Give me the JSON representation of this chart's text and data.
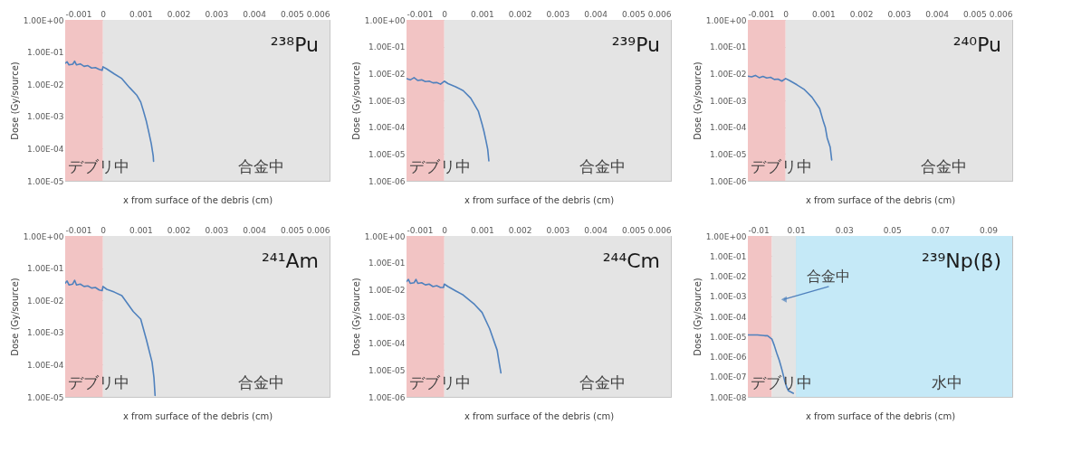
{
  "chart_data": [
    {
      "type": "line",
      "title": "²³⁸Pu",
      "xlabel": "x from surface of the debris (cm)",
      "ylabel": "Dose (Gy/source)",
      "log": "y",
      "grid": true,
      "x": [
        -0.001,
        -0.00095,
        -0.0009,
        -0.0008,
        -0.00075,
        -0.0007,
        -0.0006,
        -0.0005,
        -0.0004,
        -0.0003,
        -0.0002,
        -0.0001,
        -2e-05,
        0,
        0.0001,
        0.0003,
        0.0005,
        0.0007,
        0.0009,
        0.001,
        0.00107,
        0.00115,
        0.00122,
        0.00128,
        0.00133,
        0.00134
      ],
      "series": [
        {
          "color": "#4f81bd",
          "values": [
            0.045,
            0.05,
            0.04,
            0.042,
            0.052,
            0.04,
            0.043,
            0.036,
            0.038,
            0.032,
            0.033,
            0.029,
            0.027,
            0.035,
            0.03,
            0.021,
            0.015,
            0.008,
            0.0045,
            0.0028,
            0.0015,
            0.0007,
            0.0003,
            0.00014,
            6e-05,
            4e-05
          ]
        }
      ],
      "xlim": [
        -0.001,
        0.006
      ],
      "xticks": [
        -0.001,
        0,
        0.001,
        0.002,
        0.003,
        0.004,
        0.005,
        0.006
      ],
      "ylim": [
        1e-05,
        1
      ],
      "yticks": [
        {
          "value": 1,
          "label": "1.00E+00"
        },
        {
          "value": 0.1,
          "label": "1.00E-01"
        },
        {
          "value": 0.01,
          "label": "1.00E-02"
        },
        {
          "value": 0.001,
          "label": "1.00E-03"
        },
        {
          "value": 0.0001,
          "label": "1.00E-04"
        },
        {
          "value": 1e-05,
          "label": "1.00E-05"
        }
      ],
      "bands": [
        {
          "axis": "x",
          "from": -0.001,
          "to": 0,
          "label": "デブリ中",
          "color": "#f2c4c4"
        },
        {
          "axis": "x",
          "from": 0,
          "to": 0.006,
          "label": "合金中",
          "color": "#e4e4e4"
        }
      ]
    },
    {
      "type": "line",
      "title": "²³⁹Pu",
      "xlabel": "x from surface of the debris (cm)",
      "ylabel": "Dose (Gy/source)",
      "log": "y",
      "grid": true,
      "x": [
        -0.001,
        -0.0009,
        -0.0008,
        -0.0007,
        -0.0006,
        -0.0005,
        -0.0004,
        -0.0003,
        -0.0002,
        -0.0001,
        0,
        0.0001,
        0.0003,
        0.0005,
        0.0007,
        0.0009,
        0.001,
        0.00105,
        0.0011,
        0.00115,
        0.00118
      ],
      "series": [
        {
          "color": "#4f81bd",
          "values": [
            0.0065,
            0.0058,
            0.007,
            0.0055,
            0.0058,
            0.005,
            0.0052,
            0.0045,
            0.0046,
            0.004,
            0.0052,
            0.0042,
            0.0032,
            0.0023,
            0.0012,
            0.0004,
            0.00013,
            7e-05,
            3.3e-05,
            1.5e-05,
            5.5e-06
          ]
        }
      ],
      "xlim": [
        -0.001,
        0.006
      ],
      "xticks": [
        -0.001,
        0,
        0.001,
        0.002,
        0.003,
        0.004,
        0.005,
        0.006
      ],
      "ylim": [
        1e-06,
        1
      ],
      "yticks": [
        {
          "value": 1,
          "label": "1.00E+00"
        },
        {
          "value": 0.1,
          "label": "1.00E-01"
        },
        {
          "value": 0.01,
          "label": "1.00E-02"
        },
        {
          "value": 0.001,
          "label": "1.00E-03"
        },
        {
          "value": 0.0001,
          "label": "1.00E-04"
        },
        {
          "value": 1e-05,
          "label": "1.00E-05"
        },
        {
          "value": 1e-06,
          "label": "1.00E-06"
        }
      ],
      "bands": [
        {
          "axis": "x",
          "from": -0.001,
          "to": 0,
          "label": "デブリ中",
          "color": "#f2c4c4"
        },
        {
          "axis": "x",
          "from": 0,
          "to": 0.006,
          "label": "合金中",
          "color": "#e4e4e4"
        }
      ]
    },
    {
      "type": "line",
      "title": "²⁴⁰Pu",
      "xlabel": "x from surface of the debris (cm)",
      "ylabel": "Dose (Gy/source)",
      "log": "y",
      "grid": true,
      "x": [
        -0.001,
        -0.0009,
        -0.0008,
        -0.0007,
        -0.0006,
        -0.0005,
        -0.0004,
        -0.0003,
        -0.0002,
        -0.0001,
        0,
        0.0001,
        0.0003,
        0.0005,
        0.0007,
        0.0009,
        0.001,
        0.00105,
        0.0011,
        0.00118,
        0.00122
      ],
      "series": [
        {
          "color": "#4f81bd",
          "values": [
            0.008,
            0.0075,
            0.0085,
            0.007,
            0.0078,
            0.0068,
            0.0072,
            0.006,
            0.0062,
            0.0052,
            0.0065,
            0.0055,
            0.0038,
            0.0025,
            0.0013,
            0.0005,
            0.00016,
            0.0001,
            4e-05,
            1.8e-05,
            6e-06
          ]
        }
      ],
      "xlim": [
        -0.001,
        0.006
      ],
      "xticks": [
        -0.001,
        0,
        0.001,
        0.002,
        0.003,
        0.004,
        0.005,
        0.006
      ],
      "ylim": [
        1e-06,
        1
      ],
      "yticks": [
        {
          "value": 1,
          "label": "1.00E+00"
        },
        {
          "value": 0.1,
          "label": "1.00E-01"
        },
        {
          "value": 0.01,
          "label": "1.00E-02"
        },
        {
          "value": 0.001,
          "label": "1.00E-03"
        },
        {
          "value": 0.0001,
          "label": "1.00E-04"
        },
        {
          "value": 1e-05,
          "label": "1.00E-05"
        },
        {
          "value": 1e-06,
          "label": "1.00E-06"
        }
      ],
      "bands": [
        {
          "axis": "x",
          "from": -0.001,
          "to": 0,
          "label": "デブリ中",
          "color": "#f2c4c4"
        },
        {
          "axis": "x",
          "from": 0,
          "to": 0.006,
          "label": "合金中",
          "color": "#e4e4e4"
        }
      ]
    },
    {
      "type": "line",
      "title": "²⁴¹Am",
      "xlabel": "x from surface of the debris (cm)",
      "ylabel": "Dose (Gy/source)",
      "log": "y",
      "grid": true,
      "x": [
        -0.001,
        -0.00095,
        -0.0009,
        -0.0008,
        -0.00075,
        -0.0007,
        -0.0006,
        -0.0005,
        -0.0004,
        -0.0003,
        -0.0002,
        -0.0001,
        -2e-05,
        0,
        0.0001,
        0.0003,
        0.0005,
        0.0008,
        0.001,
        0.00115,
        0.0013,
        0.00135,
        0.00138
      ],
      "series": [
        {
          "color": "#4f81bd",
          "values": [
            0.034,
            0.04,
            0.03,
            0.032,
            0.042,
            0.03,
            0.032,
            0.027,
            0.028,
            0.024,
            0.025,
            0.021,
            0.02,
            0.027,
            0.022,
            0.018,
            0.014,
            0.0045,
            0.0026,
            0.0006,
            0.00012,
            4e-05,
            1.1e-05
          ]
        }
      ],
      "xlim": [
        -0.001,
        0.006
      ],
      "xticks": [
        -0.001,
        0,
        0.001,
        0.002,
        0.003,
        0.004,
        0.005,
        0.006
      ],
      "ylim": [
        1e-05,
        1
      ],
      "yticks": [
        {
          "value": 1,
          "label": "1.00E+00"
        },
        {
          "value": 0.1,
          "label": "1.00E-01"
        },
        {
          "value": 0.01,
          "label": "1.00E-02"
        },
        {
          "value": 0.001,
          "label": "1.00E-03"
        },
        {
          "value": 0.0001,
          "label": "1.00E-04"
        },
        {
          "value": 1e-05,
          "label": "1.00E-05"
        }
      ],
      "bands": [
        {
          "axis": "x",
          "from": -0.001,
          "to": 0,
          "label": "デブリ中",
          "color": "#f2c4c4"
        },
        {
          "axis": "x",
          "from": 0,
          "to": 0.006,
          "label": "合金中",
          "color": "#e4e4e4"
        }
      ]
    },
    {
      "type": "line",
      "title": "²⁴⁴Cm",
      "xlabel": "x from surface of the debris (cm)",
      "ylabel": "Dose (Gy/source)",
      "log": "y",
      "grid": true,
      "x": [
        -0.001,
        -0.00095,
        -0.0009,
        -0.0008,
        -0.00075,
        -0.0007,
        -0.0006,
        -0.0005,
        -0.0004,
        -0.0003,
        -0.0002,
        -0.0001,
        -2e-05,
        0,
        0.0001,
        0.0003,
        0.0005,
        0.0008,
        0.001,
        0.0012,
        0.0014,
        0.00145,
        0.0015
      ],
      "series": [
        {
          "color": "#4f81bd",
          "values": [
            0.02,
            0.024,
            0.017,
            0.018,
            0.024,
            0.017,
            0.018,
            0.015,
            0.016,
            0.013,
            0.014,
            0.012,
            0.012,
            0.016,
            0.013,
            0.009,
            0.0063,
            0.0028,
            0.0014,
            0.00035,
            5.5e-05,
            2e-05,
            7.8e-06
          ]
        }
      ],
      "xlim": [
        -0.001,
        0.006
      ],
      "xticks": [
        -0.001,
        0,
        0.001,
        0.002,
        0.003,
        0.004,
        0.005,
        0.006
      ],
      "ylim": [
        1e-06,
        1
      ],
      "yticks": [
        {
          "value": 1,
          "label": "1.00E+00"
        },
        {
          "value": 0.1,
          "label": "1.00E-01"
        },
        {
          "value": 0.01,
          "label": "1.00E-02"
        },
        {
          "value": 0.001,
          "label": "1.00E-03"
        },
        {
          "value": 0.0001,
          "label": "1.00E-04"
        },
        {
          "value": 1e-05,
          "label": "1.00E-05"
        },
        {
          "value": 1e-06,
          "label": "1.00E-06"
        }
      ],
      "bands": [
        {
          "axis": "x",
          "from": -0.001,
          "to": 0,
          "label": "デブリ中",
          "color": "#f2c4c4"
        },
        {
          "axis": "x",
          "from": 0,
          "to": 0.006,
          "label": "合金中",
          "color": "#e4e4e4"
        }
      ]
    },
    {
      "type": "line",
      "title": "²³⁹Np(β)",
      "xlabel": "x from surface of the debris (cm)",
      "ylabel": "Dose (Gy/source)",
      "log": "y",
      "grid": true,
      "x": [
        -0.01,
        -0.006,
        -0.003,
        -0.0018,
        0,
        0.001,
        0.002,
        0.0031,
        0.0042,
        0.0053,
        0.0062,
        0.0069,
        0.0089
      ],
      "series": [
        {
          "color": "#4f81bd",
          "values": [
            1.2e-05,
            1.2e-05,
            1.1e-05,
            1.1e-05,
            7.5e-06,
            3.6e-06,
            1.5e-06,
            6.5e-07,
            2.2e-07,
            6.5e-08,
            3e-08,
            2e-08,
            1.5e-08
          ]
        }
      ],
      "xlim": [
        -0.01,
        0.1
      ],
      "xticks": [
        -0.01,
        0.01,
        0.03,
        0.05,
        0.07,
        0.09
      ],
      "ylim": [
        1e-08,
        1
      ],
      "yticks": [
        {
          "value": 1,
          "label": "1.00E+00"
        },
        {
          "value": 0.1,
          "label": "1.00E-01"
        },
        {
          "value": 0.01,
          "label": "1.00E-02"
        },
        {
          "value": 0.001,
          "label": "1.00E-03"
        },
        {
          "value": 0.0001,
          "label": "1.00E-04"
        },
        {
          "value": 1e-05,
          "label": "1.00E-05"
        },
        {
          "value": 1e-06,
          "label": "1.00E-06"
        },
        {
          "value": 1e-07,
          "label": "1.00E-07"
        },
        {
          "value": 1e-08,
          "label": "1.00E-08"
        }
      ],
      "bands": [
        {
          "axis": "x",
          "from": -0.01,
          "to": 0,
          "label": "デブリ中",
          "color": "#f2c4c4"
        },
        {
          "axis": "x",
          "from": 0,
          "to": 0.01,
          "color": "#e4e4e4"
        },
        {
          "axis": "x",
          "from": 0.01,
          "to": 0.1,
          "label": "水中",
          "color": "#c5e9f7"
        }
      ],
      "annotations": [
        {
          "text": "合金中",
          "x": 0.005,
          "y": 0.0007
        }
      ]
    }
  ]
}
